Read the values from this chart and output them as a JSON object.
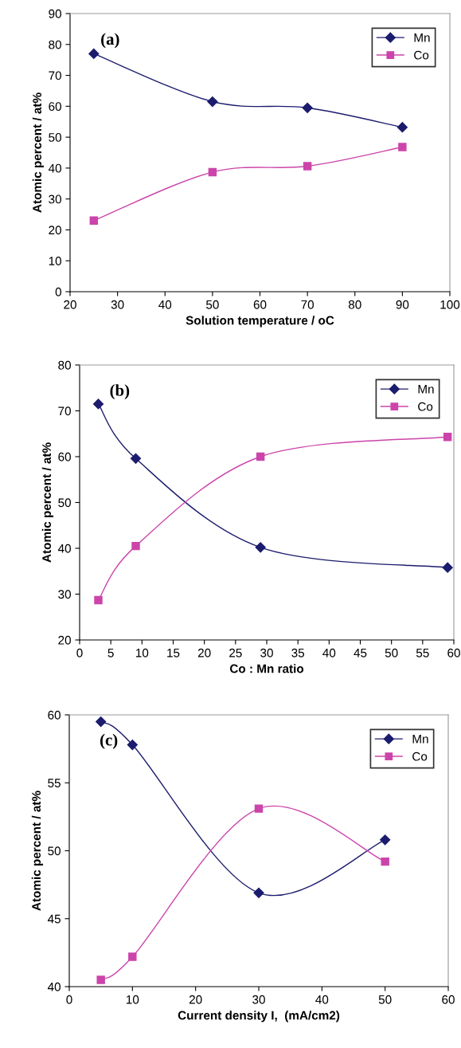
{
  "chart_data": [
    {
      "type": "line",
      "xlabel": "Solution temperature / oC",
      "ylabel": "Atomic percent / at%",
      "annotations": [
        "(a)"
      ],
      "x": [
        25,
        50,
        70,
        90
      ],
      "xlim": [
        20,
        100
      ],
      "xticks": [
        20,
        30,
        40,
        50,
        60,
        70,
        80,
        90,
        100
      ],
      "ylim": [
        0,
        90
      ],
      "yticks": [
        0,
        10,
        20,
        30,
        40,
        50,
        60,
        70,
        80,
        90
      ],
      "legend": "top right",
      "series": [
        {
          "name": "Mn",
          "color": "#1c1c6e",
          "marker": "diamond",
          "values": [
            77,
            61.5,
            59.5,
            53.2
          ]
        },
        {
          "name": "Co",
          "color": "#cc44aa",
          "marker": "square",
          "values": [
            23,
            38.7,
            40.6,
            46.8
          ]
        }
      ]
    },
    {
      "type": "line",
      "xlabel": "Co : Mn ratio",
      "ylabel": "Atomic percent / at%",
      "annotations": [
        "(b)"
      ],
      "x": [
        3,
        9,
        29,
        59
      ],
      "xlim": [
        0,
        60
      ],
      "xticks": [
        0,
        5,
        10,
        15,
        20,
        25,
        30,
        35,
        40,
        45,
        50,
        55,
        60
      ],
      "ylim": [
        20,
        80
      ],
      "yticks": [
        20,
        30,
        40,
        50,
        60,
        70,
        80
      ],
      "legend": "top right",
      "series": [
        {
          "name": "Mn",
          "color": "#1c1c6e",
          "marker": "diamond",
          "values": [
            71.5,
            59.6,
            40.2,
            35.8
          ]
        },
        {
          "name": "Co",
          "color": "#cc44aa",
          "marker": "square",
          "values": [
            28.7,
            40.5,
            60,
            64.3
          ]
        }
      ]
    },
    {
      "type": "line",
      "xlabel": "Current density I,  (mA/cm2)",
      "ylabel": "Atomic percent / at%",
      "annotations": [
        "(c)"
      ],
      "x": [
        5,
        10,
        30,
        50
      ],
      "xlim": [
        0,
        60
      ],
      "xticks": [
        0,
        10,
        20,
        30,
        40,
        50,
        60
      ],
      "ylim": [
        40,
        60
      ],
      "yticks": [
        40,
        45,
        50,
        55,
        60
      ],
      "legend": "top right",
      "series": [
        {
          "name": "Mn",
          "color": "#1c1c6e",
          "marker": "diamond",
          "values": [
            59.5,
            57.8,
            46.9,
            50.8
          ]
        },
        {
          "name": "Co",
          "color": "#cc44aa",
          "marker": "square",
          "values": [
            40.5,
            42.2,
            53.1,
            49.2
          ]
        }
      ]
    }
  ]
}
